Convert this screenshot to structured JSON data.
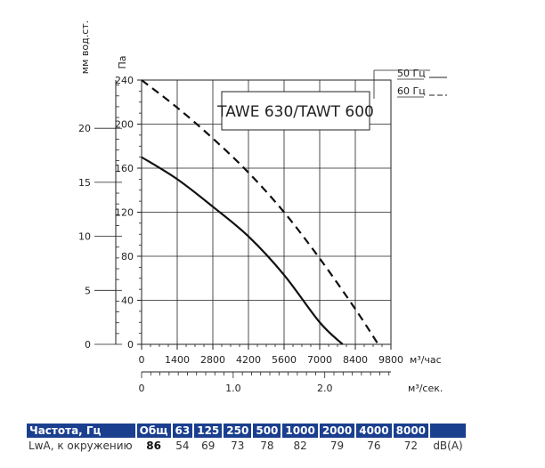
{
  "chart_data": {
    "type": "line",
    "title": "TAWE 630/TAWT 600",
    "xlabel": "м³/час",
    "x2label": "м³/сек.",
    "ylabel": "Па",
    "y2label": "мм вод.ст.",
    "xlim": [
      0,
      9800
    ],
    "ylim": [
      0,
      240
    ],
    "x_ticks": [
      "0",
      "1400",
      "2800",
      "4200",
      "5600",
      "7000",
      "8400",
      "9800"
    ],
    "x2_ticks": [
      "0",
      "1.0",
      "2.0"
    ],
    "y_ticks": [
      "0",
      "40",
      "80",
      "120",
      "160",
      "200",
      "240"
    ],
    "y2_ticks": [
      "0",
      "5",
      "10",
      "15",
      "20"
    ],
    "legend": [
      {
        "label": "50 Гц",
        "style": "solid"
      },
      {
        "label": "60 Гц",
        "style": "dashed"
      }
    ],
    "series": [
      {
        "name": "50 Гц",
        "style": "solid",
        "x": [
          0,
          1400,
          2800,
          4200,
          5600,
          7000,
          7900
        ],
        "y": [
          170,
          150,
          125,
          98,
          63,
          20,
          0
        ]
      },
      {
        "name": "60 Гц",
        "style": "dashed",
        "x": [
          0,
          1400,
          2800,
          4200,
          5600,
          7000,
          8400,
          9300
        ],
        "y": [
          240,
          215,
          187,
          156,
          120,
          78,
          32,
          0
        ]
      }
    ]
  },
  "table": {
    "headers": [
      "Частота, Гц",
      "Общ",
      "63",
      "125",
      "250",
      "500",
      "1000",
      "2000",
      "4000",
      "8000"
    ],
    "row": {
      "label": "LwA, к окружению",
      "total": "86",
      "values": [
        "54",
        "69",
        "73",
        "78",
        "82",
        "79",
        "76",
        "72"
      ],
      "unit": "dB(A)"
    }
  }
}
